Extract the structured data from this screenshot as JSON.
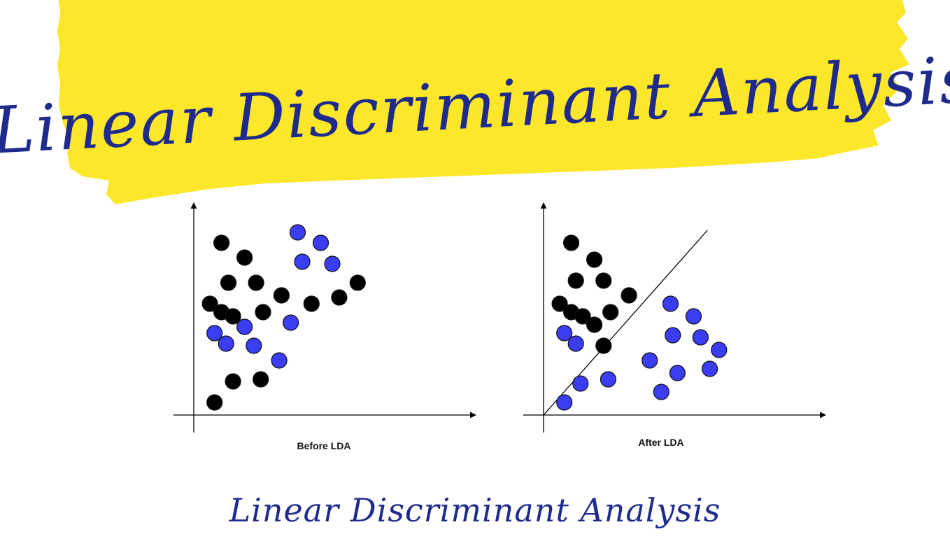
{
  "header": {
    "title": "Linear Discriminant Analysis",
    "highlight_color": "#fde72a",
    "text_color": "#1e2b8c"
  },
  "footer": {
    "title": "Linear Discriminant Analysis"
  },
  "colors": {
    "class_a": "#000000",
    "class_b": "#3a3df2",
    "axis": "#000000"
  },
  "chart_data": [
    {
      "type": "scatter",
      "caption": "Before LDA",
      "xlim": [
        0,
        10
      ],
      "ylim": [
        0,
        10
      ],
      "grid": false,
      "series": [
        {
          "color": "#000000",
          "points": [
            [
              1.2,
              8.2
            ],
            [
              2.2,
              7.5
            ],
            [
              1.5,
              6.3
            ],
            [
              2.7,
              6.3
            ],
            [
              0.7,
              5.3
            ],
            [
              1.2,
              4.9
            ],
            [
              1.7,
              4.7
            ],
            [
              3.0,
              4.9
            ],
            [
              3.8,
              5.7
            ],
            [
              5.1,
              5.3
            ],
            [
              6.3,
              5.6
            ],
            [
              7.1,
              6.3
            ],
            [
              1.7,
              1.6
            ],
            [
              2.9,
              1.7
            ],
            [
              0.9,
              0.6
            ]
          ]
        },
        {
          "color": "#3a3df2",
          "points": [
            [
              4.5,
              8.7
            ],
            [
              5.5,
              8.2
            ],
            [
              4.7,
              7.3
            ],
            [
              6.0,
              7.2
            ],
            [
              0.9,
              3.9
            ],
            [
              1.4,
              3.4
            ],
            [
              2.2,
              4.2
            ],
            [
              2.6,
              3.3
            ],
            [
              4.2,
              4.4
            ],
            [
              3.7,
              2.6
            ]
          ]
        }
      ]
    },
    {
      "type": "scatter",
      "caption": "After LDA",
      "xlim": [
        0,
        10
      ],
      "ylim": [
        0,
        10
      ],
      "grid": false,
      "series": [
        {
          "color": "#000000",
          "points": [
            [
              1.2,
              8.2
            ],
            [
              2.2,
              7.4
            ],
            [
              1.4,
              6.4
            ],
            [
              2.6,
              6.4
            ],
            [
              3.7,
              5.7
            ],
            [
              0.7,
              5.3
            ],
            [
              1.2,
              4.9
            ],
            [
              1.7,
              4.7
            ],
            [
              2.9,
              4.9
            ],
            [
              2.2,
              4.3
            ],
            [
              2.6,
              3.3
            ]
          ]
        },
        {
          "color": "#3a3df2",
          "points": [
            [
              0.9,
              3.9
            ],
            [
              1.4,
              3.4
            ],
            [
              5.5,
              5.3
            ],
            [
              6.5,
              4.7
            ],
            [
              5.6,
              3.8
            ],
            [
              6.8,
              3.7
            ],
            [
              7.6,
              3.1
            ],
            [
              4.6,
              2.6
            ],
            [
              5.8,
              2.0
            ],
            [
              7.2,
              2.2
            ],
            [
              1.6,
              1.5
            ],
            [
              2.8,
              1.7
            ],
            [
              5.1,
              1.1
            ],
            [
              0.9,
              0.6
            ]
          ]
        }
      ],
      "separator_line": [
        [
          0,
          0
        ],
        [
          7.1,
          8.8
        ]
      ]
    }
  ]
}
